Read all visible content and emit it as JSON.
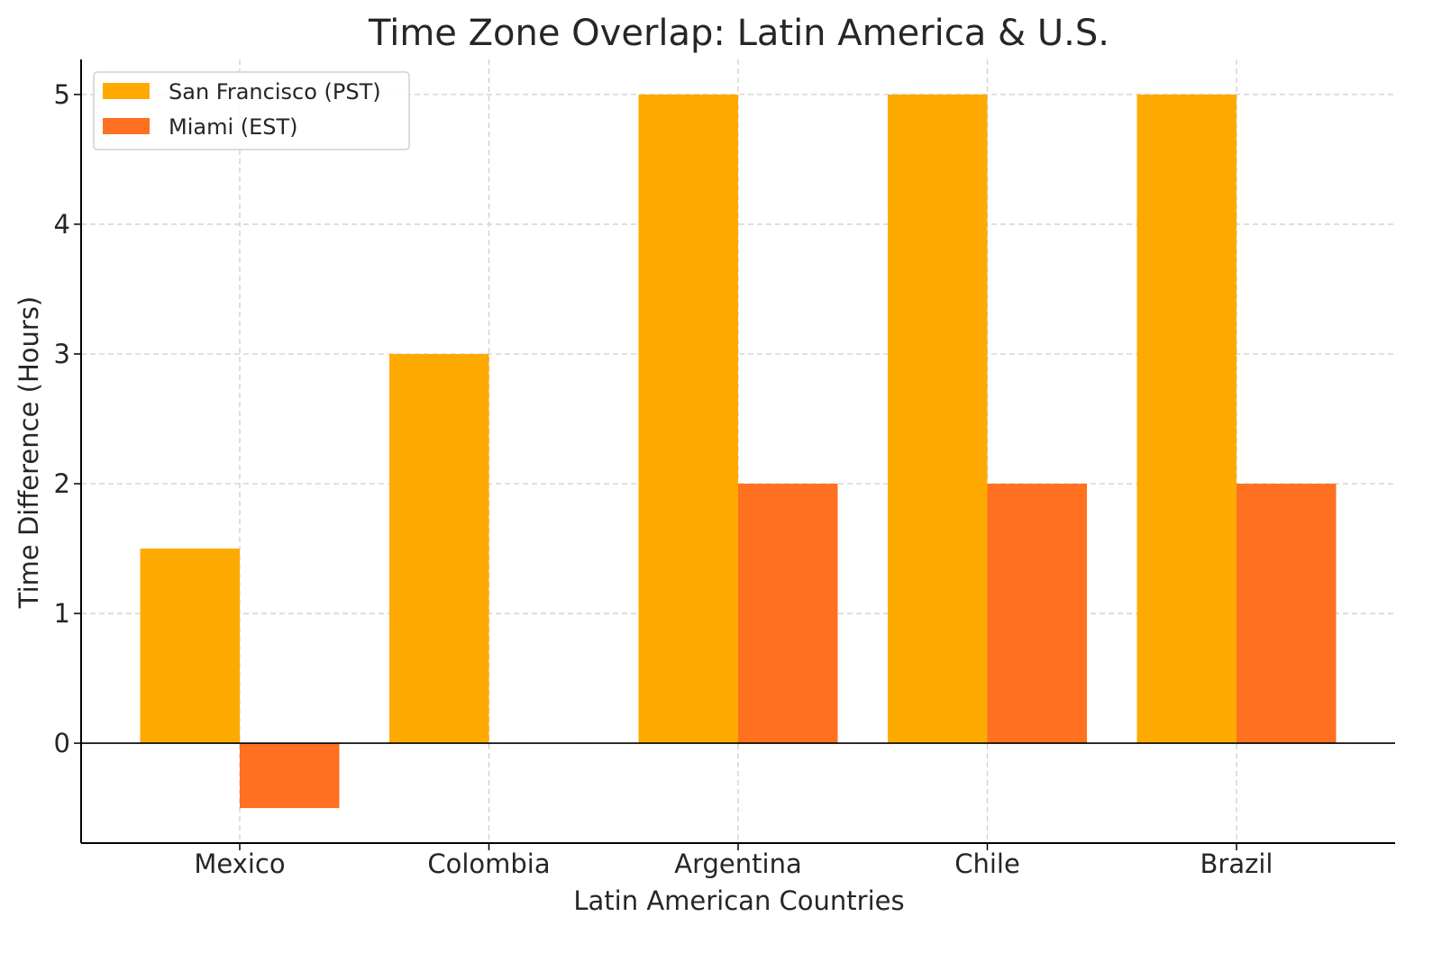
{
  "chart_data": {
    "type": "bar",
    "title": "Time Zone Overlap: Latin America & U.S.",
    "xlabel": "Latin American Countries",
    "ylabel": "Time Difference (Hours)",
    "categories": [
      "Mexico",
      "Colombia",
      "Argentina",
      "Chile",
      "Brazil"
    ],
    "series": [
      {
        "name": "San Francisco (PST)",
        "values": [
          1.5,
          3,
          5,
          5,
          5
        ],
        "color": "#FFAA00"
      },
      {
        "name": "Miami (EST)",
        "values": [
          -0.5,
          0,
          2,
          2,
          2
        ],
        "color": "#FF7020"
      }
    ],
    "ylim": [
      -0.77,
      5.27
    ],
    "yticks": [
      0,
      1,
      2,
      3,
      4,
      5
    ],
    "grid": true,
    "legend": "top-left"
  }
}
